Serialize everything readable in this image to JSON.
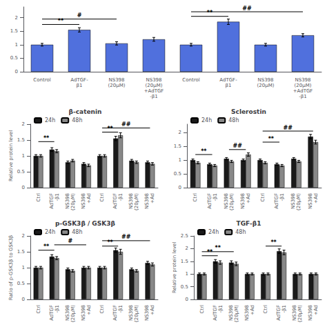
{
  "chart_data": [
    {
      "type": "bar",
      "categories": [
        "Control",
        "AdTGF-\nβ1",
        "NS398\n(20μM)",
        "NS398\n(20μM)\n+AdTGF\n-β1",
        "Control",
        "AdTGF-\nβ1",
        "NS398\n(20μM)",
        "NS398\n(20μM)\n+AdTGF\n-β1"
      ],
      "values": [
        1.0,
        1.55,
        1.05,
        1.2,
        1.0,
        1.85,
        1.0,
        1.35
      ],
      "errors": [
        0.05,
        0.08,
        0.06,
        0.07,
        0.05,
        0.1,
        0.05,
        0.06
      ],
      "ylim": [
        0,
        2.4
      ],
      "yticks": [
        0,
        0.5,
        1,
        1.5,
        2
      ],
      "grid": false,
      "annotations": [
        {
          "text": "**",
          "from": 0,
          "to": 1,
          "y": 1.75
        },
        {
          "text": "#",
          "from": 0,
          "to": 2,
          "y": 1.95
        },
        {
          "text": "**",
          "from": 4,
          "to": 5,
          "y": 2.05
        },
        {
          "text": "##",
          "from": 4,
          "to": 7,
          "y": 2.22
        }
      ]
    },
    {
      "type": "bar",
      "title": "β-catenin",
      "ylabel": "Relative protein level",
      "categories": [
        "Ctrl",
        "AdTGF\n-β1",
        "NS398\n(20μM)",
        "NS398\n+Ad",
        "Ctrl",
        "AdTGF\n-β1",
        "NS398\n(20μM)",
        "NS398\n+Ad"
      ],
      "series": [
        {
          "name": "24h",
          "color": "#1a1a1a",
          "values": [
            1.0,
            1.2,
            0.8,
            0.75,
            1.0,
            1.55,
            0.85,
            0.8
          ],
          "errors": [
            0.04,
            0.06,
            0.04,
            0.04,
            0.04,
            0.07,
            0.04,
            0.04
          ]
        },
        {
          "name": "48h",
          "color": "#888888",
          "values": [
            1.0,
            1.15,
            0.85,
            0.7,
            1.0,
            1.65,
            0.8,
            0.75
          ],
          "errors": [
            0.04,
            0.05,
            0.04,
            0.04,
            0.04,
            0.08,
            0.04,
            0.04
          ]
        }
      ],
      "ylim": [
        0,
        2.0
      ],
      "yticks": [
        0,
        0.5,
        1,
        1.5,
        2
      ],
      "grid": false,
      "legend": "upper left",
      "annotations": [
        {
          "text": "**",
          "from": 0,
          "to": 1,
          "y": 1.45
        },
        {
          "text": "**",
          "from": 4,
          "to": 5,
          "y": 1.75
        },
        {
          "text": "##",
          "from": 4,
          "to": 7,
          "y": 1.88
        }
      ]
    },
    {
      "type": "bar",
      "title": "Sclerostin",
      "categories": [
        "Ctrl",
        "AdTGF\n-β1",
        "NS398\n(20μM)",
        "NS398\n+Ad",
        "Ctrl",
        "AdTGF\n-β1",
        "NS398\n(20μM)",
        "NS398\n+Ad"
      ],
      "series": [
        {
          "name": "24h",
          "color": "#1a1a1a",
          "values": [
            1.0,
            0.85,
            1.05,
            1.0,
            1.0,
            0.85,
            1.05,
            1.85
          ],
          "errors": [
            0.04,
            0.04,
            0.04,
            0.04,
            0.04,
            0.04,
            0.04,
            0.08
          ]
        },
        {
          "name": "48h",
          "color": "#888888",
          "values": [
            0.9,
            0.8,
            0.95,
            1.2,
            0.9,
            0.8,
            0.95,
            1.65
          ],
          "errors": [
            0.04,
            0.04,
            0.04,
            0.06,
            0.04,
            0.04,
            0.04,
            0.07
          ]
        }
      ],
      "ylim": [
        0,
        2.3
      ],
      "yticks": [
        0,
        0.5,
        1,
        1.5,
        2
      ],
      "grid": false,
      "legend": "upper left",
      "annotations": [
        {
          "text": "**",
          "from": 0,
          "to": 1,
          "y": 1.2
        },
        {
          "text": "##",
          "from": 2,
          "to": 3,
          "y": 1.38
        },
        {
          "text": "**",
          "from": 4,
          "to": 5,
          "y": 1.65
        },
        {
          "text": "##",
          "from": 4,
          "to": 7,
          "y": 2.05
        }
      ]
    },
    {
      "type": "bar",
      "title": "p-GSK3β / GSK3β",
      "ylabel": "Ratio of p-GSK3β to GSK3β",
      "categories": [
        "Ctrl",
        "AdTGF\n-β1",
        "NS398\n(20μM)",
        "NS398\n+Ad",
        "Ctrl",
        "AdTGF\n-β1",
        "NS398\n(20μM)",
        "NS398\n+Ad"
      ],
      "series": [
        {
          "name": "24h",
          "color": "#1a1a1a",
          "values": [
            1.0,
            1.35,
            0.95,
            1.0,
            1.0,
            1.55,
            0.95,
            1.15
          ],
          "errors": [
            0.04,
            0.06,
            0.04,
            0.04,
            0.04,
            0.07,
            0.04,
            0.05
          ]
        },
        {
          "name": "48h",
          "color": "#888888",
          "values": [
            1.0,
            1.3,
            0.9,
            1.0,
            1.0,
            1.5,
            0.9,
            1.1
          ],
          "errors": [
            0.04,
            0.05,
            0.04,
            0.04,
            0.04,
            0.08,
            0.04,
            0.05
          ]
        }
      ],
      "ylim": [
        0,
        2.0
      ],
      "yticks": [
        0,
        0.5,
        1,
        1.5,
        2
      ],
      "grid": false,
      "legend": "upper left",
      "annotations": [
        {
          "text": "**",
          "from": 0,
          "to": 1,
          "y": 1.55
        },
        {
          "text": "#",
          "from": 1,
          "to": 3,
          "y": 1.72
        },
        {
          "text": "**",
          "from": 4,
          "to": 5,
          "y": 1.68
        },
        {
          "text": "##",
          "from": 4,
          "to": 7,
          "y": 1.85
        }
      ]
    },
    {
      "type": "bar",
      "title": "TGF-β1",
      "ylabel": "Relative protein level",
      "categories": [
        "Ctrl",
        "AdTGF\n-β1",
        "NS398\n(20μM)",
        "NS398\n+Ad",
        "Ctrl",
        "AdTGF\n-β1",
        "NS398\n(20μM)",
        "NS398\n+Ad"
      ],
      "series": [
        {
          "name": "24h",
          "color": "#1a1a1a",
          "values": [
            1.0,
            1.5,
            1.45,
            1.0,
            1.0,
            1.9,
            1.0,
            1.0
          ],
          "errors": [
            0.04,
            0.07,
            0.07,
            0.04,
            0.04,
            0.09,
            0.04,
            0.04
          ]
        },
        {
          "name": "48h",
          "color": "#888888",
          "values": [
            1.0,
            1.45,
            1.4,
            1.0,
            1.0,
            1.85,
            1.0,
            1.0
          ],
          "errors": [
            0.04,
            0.07,
            0.07,
            0.04,
            0.04,
            0.09,
            0.04,
            0.04
          ]
        }
      ],
      "ylim": [
        0,
        2.5
      ],
      "yticks": [
        0,
        0.5,
        1,
        1.5,
        2,
        2.5
      ],
      "grid": false,
      "legend": "upper left",
      "annotations": [
        {
          "text": "**",
          "from": 0,
          "to": 1,
          "y": 1.72
        },
        {
          "text": "**",
          "from": 0,
          "to": 2,
          "y": 1.88
        },
        {
          "text": "**",
          "from": 4,
          "to": 5,
          "y": 2.1
        }
      ]
    }
  ]
}
